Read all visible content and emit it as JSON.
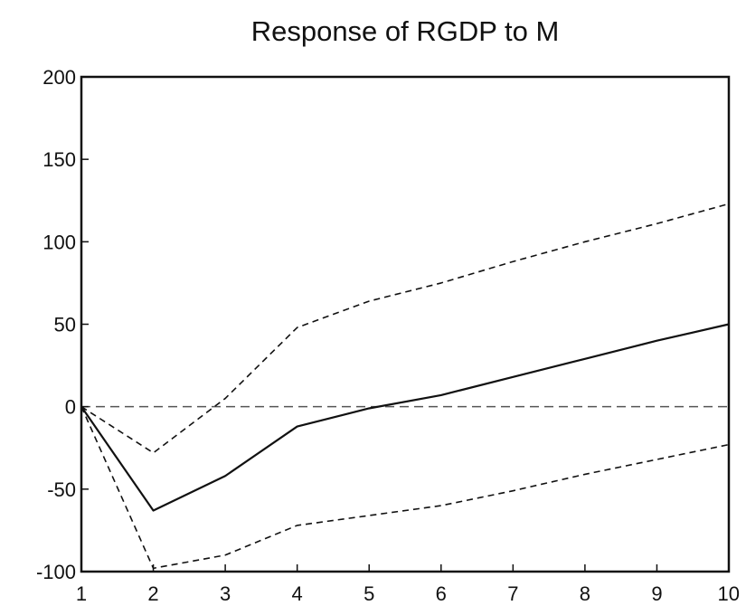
{
  "chart_data": {
    "type": "line",
    "title": "Response of RGDP to M",
    "xlabel": "",
    "ylabel": "",
    "x": [
      1,
      2,
      3,
      4,
      5,
      6,
      7,
      8,
      9,
      10
    ],
    "x_tick_labels": [
      "1",
      "2",
      "3",
      "4",
      "5",
      "6",
      "7",
      "8",
      "9",
      "10"
    ],
    "y_tick_labels": [
      "200",
      "150",
      "100",
      "50",
      "0",
      "-50",
      "-100"
    ],
    "y_ticks": [
      200,
      150,
      100,
      50,
      0,
      -50,
      -100
    ],
    "xlim": [
      1,
      10
    ],
    "ylim": [
      -100,
      200
    ],
    "grid": false,
    "legend": "none",
    "zero_line": true,
    "series": [
      {
        "style": "solid",
        "color": "#111111",
        "values": [
          0,
          -63,
          -42,
          -12,
          -1,
          7,
          18,
          29,
          40,
          50
        ]
      },
      {
        "style": "dashed",
        "color": "#111111",
        "values": [
          0,
          -28,
          5,
          48,
          64,
          75,
          88,
          100,
          111,
          123
        ]
      },
      {
        "style": "dashed",
        "color": "#111111",
        "values": [
          0,
          -98,
          -90,
          -72,
          -66,
          -60,
          -51,
          -41,
          -32,
          -23
        ]
      }
    ]
  }
}
